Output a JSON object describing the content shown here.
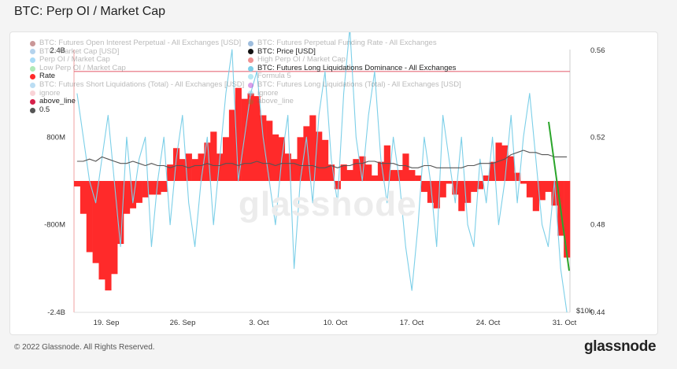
{
  "page_title": "BTC: Perp OI / Market Cap",
  "watermark": "glassnode",
  "footer": {
    "copyright": "© 2022 Glassnode. All Rights Reserved.",
    "brand": "glassnode"
  },
  "legend_left": [
    {
      "label": "BTC: Futures Open Interest Perpetual - All Exchanges [USD]",
      "color": "#8b1a1a",
      "active": false
    },
    {
      "label": "BTC: Market Cap [USD]",
      "color": "#5aa0d8",
      "active": false
    },
    {
      "label": "Perp OI / Market Cap",
      "color": "#3fb1ef",
      "active": false
    },
    {
      "label": "Low Perp OI / Market Cap",
      "color": "#4fcf63",
      "active": false
    },
    {
      "label": "Rate",
      "color": "#ff2a2a",
      "active": true
    },
    {
      "label": "BTC: Futures Short Liquidations (Total) - All Exchanges [USD]",
      "color": "#6bb6e6",
      "active": false
    },
    {
      "label": "ignore",
      "color": "#f2a0a8",
      "active": false
    },
    {
      "label": "above_line",
      "color": "#d6204a",
      "active": true
    },
    {
      "label": "0.5",
      "color": "#555555",
      "active": true
    }
  ],
  "legend_right": [
    {
      "label": "BTC: Futures Perpetual Funding Rate - All Exchanges",
      "color": "#2a6fb5",
      "active": false
    },
    {
      "label": "BTC: Price [USD]",
      "color": "#111111",
      "active": true
    },
    {
      "label": "High Perp OI / Market Cap",
      "color": "#e01010",
      "active": false
    },
    {
      "label": "BTC: Futures Long Liquidations Dominance - All Exchanges",
      "color": "#7ccfe8",
      "active": true
    },
    {
      "label": "Formula 5",
      "color": "#5ed0e6",
      "active": false
    },
    {
      "label": "BTC: Futures Long Liquidations (Total) - All Exchanges [USD]",
      "color": "#b030d0",
      "active": false
    },
    {
      "label": "ignore",
      "color": "#7ad8e8",
      "active": false
    },
    {
      "label": "above_line",
      "color": "#a06a30",
      "active": false
    }
  ],
  "chart_data": {
    "type": "bar",
    "x_ticks": [
      "19. Sep",
      "26. Sep",
      "3. Oct",
      "10. Oct",
      "17. Oct",
      "24. Oct",
      "31. Oct"
    ],
    "y_left_ticks": [
      "2.4B",
      "800M",
      "-800M",
      "-2.4B"
    ],
    "y_left_range": [
      -2400000000,
      2400000000
    ],
    "y_right_ticks": [
      "0.56",
      "0.52",
      "0.48",
      "0.44"
    ],
    "y_right_range": [
      0.44,
      0.56
    ],
    "y_price_tick": "$10k",
    "threshold_line_left_axis": 2000000000,
    "series": [
      {
        "name": "Rate",
        "type": "bar",
        "color": "#ff2a2a",
        "axis": "left",
        "x_start": "2022-09-15",
        "x_end": "2022-10-31",
        "values_millions": [
          -100,
          -600,
          -1300,
          -1500,
          -1800,
          -2000,
          -1700,
          -1150,
          -600,
          -500,
          -400,
          -300,
          -250,
          -250,
          -200,
          300,
          600,
          400,
          500,
          400,
          500,
          700,
          900,
          500,
          800,
          1300,
          1700,
          1500,
          1600,
          1550,
          1200,
          1100,
          850,
          800,
          500,
          400,
          800,
          1000,
          1200,
          900,
          750,
          300,
          -150,
          300,
          200,
          400,
          450,
          300,
          100,
          350,
          650,
          200,
          200,
          500,
          200,
          100,
          -200,
          -400,
          -500,
          -300,
          -50,
          -250,
          -550,
          -400,
          -200,
          -150,
          100,
          350,
          700,
          650,
          450,
          150,
          -50,
          -300,
          -550,
          -350,
          -200,
          -450,
          -1000,
          -1400
        ]
      },
      {
        "name": "BTC: Futures Long Liquidations Dominance - All Exchanges",
        "type": "line",
        "color": "#7ccfe8",
        "axis": "right",
        "values": [
          0.54,
          0.52,
          0.5,
          0.49,
          0.51,
          0.53,
          0.5,
          0.47,
          0.52,
          0.49,
          0.51,
          0.52,
          0.47,
          0.5,
          0.52,
          0.48,
          0.51,
          0.53,
          0.49,
          0.47,
          0.5,
          0.52,
          0.48,
          0.51,
          0.54,
          0.56,
          0.5,
          0.52,
          0.54,
          0.55,
          0.52,
          0.5,
          0.48,
          0.51,
          0.53,
          0.46,
          0.5,
          0.52,
          0.49,
          0.53,
          0.55,
          0.51,
          0.49,
          0.54,
          0.57,
          0.52,
          0.5,
          0.53,
          0.55,
          0.51,
          0.49,
          0.52,
          0.5,
          0.47,
          0.45,
          0.48,
          0.52,
          0.5,
          0.47,
          0.53,
          0.51,
          0.49,
          0.52,
          0.48,
          0.47,
          0.51,
          0.49,
          0.52,
          0.48,
          0.5,
          0.53,
          0.49,
          0.52,
          0.54,
          0.51,
          0.48,
          0.47,
          0.5,
          0.46,
          0.44
        ]
      },
      {
        "name": "0.5",
        "type": "line",
        "color": "#555555",
        "axis": "right",
        "values": [
          0.509,
          0.509,
          0.51,
          0.509,
          0.511,
          0.51,
          0.509,
          0.508,
          0.508,
          0.509,
          0.508,
          0.507,
          0.508,
          0.507,
          0.507,
          0.506,
          0.507,
          0.507,
          0.506,
          0.507,
          0.507,
          0.508,
          0.507,
          0.507,
          0.508,
          0.508,
          0.507,
          0.508,
          0.508,
          0.509,
          0.508,
          0.508,
          0.507,
          0.508,
          0.508,
          0.508,
          0.507,
          0.507,
          0.507,
          0.506,
          0.506,
          0.507,
          0.506,
          0.507,
          0.507,
          0.508,
          0.508,
          0.509,
          0.509,
          0.508,
          0.508,
          0.508,
          0.507,
          0.507,
          0.506,
          0.506,
          0.507,
          0.507,
          0.506,
          0.506,
          0.506,
          0.506,
          0.506,
          0.507,
          0.507,
          0.508,
          0.508,
          0.508,
          0.509,
          0.51,
          0.512,
          0.513,
          0.514,
          0.513,
          0.513,
          0.512,
          0.512,
          0.511,
          0.511,
          0.511
        ]
      },
      {
        "name": "Low Perp OI / Market Cap",
        "type": "trend",
        "color": "#2aa52a",
        "axis": "right",
        "values": [
          0.527,
          0.459
        ]
      }
    ]
  }
}
